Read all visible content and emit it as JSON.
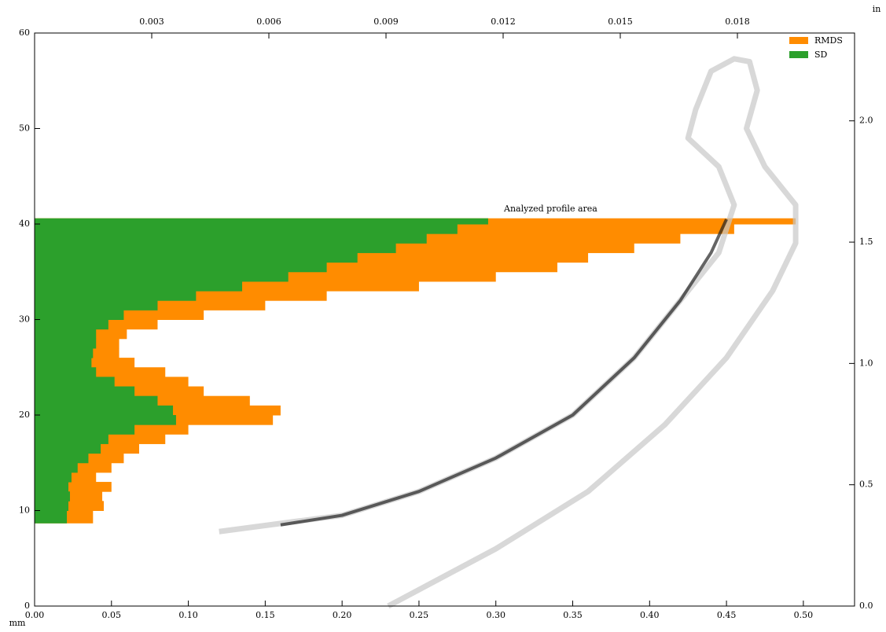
{
  "chart_data": {
    "type": "barh_profile",
    "xlabel": "mm",
    "x2label": "in",
    "xlim": [
      0,
      0.5333
    ],
    "ylim": [
      0,
      60
    ],
    "x2lim": [
      0,
      0.021
    ],
    "y2lim": [
      0,
      2.362
    ],
    "xticks": [
      {
        "value": 0,
        "label": "0.00"
      },
      0.05,
      {
        "value": 0.1,
        "label": "0.10"
      },
      0.15,
      {
        "value": 0.2,
        "label": "0.20"
      },
      0.25,
      {
        "value": 0.3,
        "label": "0.30"
      },
      0.35,
      {
        "value": 0.4,
        "label": "0.40"
      },
      0.45,
      {
        "value": 0.5,
        "label": "0.50"
      }
    ],
    "yticks": [
      0,
      10,
      20,
      30,
      40,
      50,
      60
    ],
    "x2ticks": [
      0.003,
      0.006,
      0.009,
      0.012,
      0.015,
      0.018
    ],
    "y2ticks": [
      {
        "value": 0,
        "label": "0.0"
      },
      0.5,
      {
        "value": 1,
        "label": "1.0"
      },
      1.5,
      {
        "value": 2,
        "label": "2.0"
      }
    ],
    "legend": "upper right",
    "y_edges": [
      8.7,
      10,
      11,
      12,
      13,
      14,
      15,
      16,
      17,
      18,
      19,
      20,
      21,
      22,
      23,
      24,
      25,
      26,
      27,
      28,
      29,
      30,
      31,
      32,
      33,
      34,
      35,
      36,
      37,
      38,
      39,
      40,
      40.6
    ],
    "series": [
      {
        "name": "RMDS",
        "color": "#ff8c00",
        "values": [
          0.038,
          0.045,
          0.044,
          0.05,
          0.04,
          0.05,
          0.058,
          0.068,
          0.085,
          0.1,
          0.155,
          0.16,
          0.14,
          0.11,
          0.1,
          0.085,
          0.065,
          0.055,
          0.055,
          0.06,
          0.08,
          0.11,
          0.15,
          0.19,
          0.25,
          0.3,
          0.34,
          0.36,
          0.39,
          0.42,
          0.455,
          0.495
        ]
      },
      {
        "name": "SD",
        "color": "#2ca02c",
        "values": [
          0.021,
          0.022,
          0.023,
          0.022,
          0.024,
          0.028,
          0.035,
          0.043,
          0.048,
          0.065,
          0.092,
          0.09,
          0.08,
          0.065,
          0.052,
          0.04,
          0.037,
          0.038,
          0.04,
          0.04,
          0.048,
          0.058,
          0.08,
          0.105,
          0.135,
          0.165,
          0.19,
          0.21,
          0.235,
          0.255,
          0.275,
          0.295
        ]
      }
    ],
    "lines": [
      {
        "color": "#c8c8c8",
        "x": [
          0.23,
          0.3,
          0.36,
          0.41,
          0.45,
          0.48,
          0.495,
          0.495,
          0.475,
          0.463,
          0.47,
          0.465,
          0.455,
          0.44,
          0.43,
          0.425,
          0.445,
          0.455,
          0.445,
          0.42,
          0.39,
          0.35,
          0.3,
          0.25,
          0.2,
          0.12
        ],
        "y": [
          0,
          6,
          12,
          19,
          26,
          33,
          38,
          42,
          46,
          50,
          54,
          57,
          57.3,
          56,
          52,
          49,
          46,
          42,
          37,
          32,
          26,
          20,
          15.5,
          12,
          9.5,
          7.8
        ]
      },
      {
        "color": "#222222",
        "x": [
          0.16,
          0.2,
          0.25,
          0.3,
          0.35,
          0.39,
          0.42,
          0.44,
          0.45
        ],
        "y": [
          8.5,
          9.5,
          12,
          15.5,
          20,
          26,
          32,
          37,
          40.5
        ]
      }
    ],
    "annotation": "Analyzed profile area"
  }
}
